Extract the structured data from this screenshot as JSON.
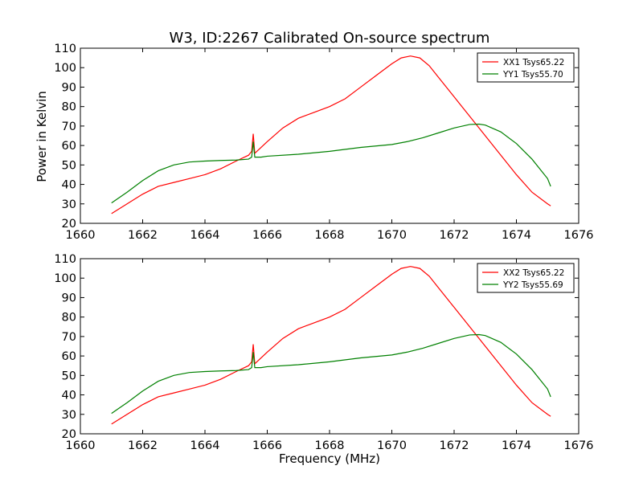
{
  "figure": {
    "title": "W3, ID:2267 Calibrated On-source spectrum",
    "ylabel": "Power in Kelvin",
    "xlabel": "Frequency (MHz)"
  },
  "chart_data": [
    {
      "type": "line",
      "xlim": [
        1660,
        1676
      ],
      "ylim": [
        20,
        110
      ],
      "xticks": [
        1660,
        1662,
        1664,
        1666,
        1668,
        1670,
        1672,
        1674,
        1676
      ],
      "yticks": [
        20,
        30,
        40,
        50,
        60,
        70,
        80,
        90,
        100,
        110
      ],
      "legend_position": "top-right",
      "series": [
        {
          "name": "XX1 Tsys65.22",
          "color": "#ff0000",
          "x": [
            1661.0,
            1661.5,
            1662.0,
            1662.5,
            1663.0,
            1663.5,
            1664.0,
            1664.5,
            1665.0,
            1665.4,
            1665.5,
            1665.55,
            1665.6,
            1665.8,
            1666.0,
            1666.5,
            1667.0,
            1667.5,
            1668.0,
            1668.5,
            1669.0,
            1669.5,
            1670.0,
            1670.3,
            1670.6,
            1670.9,
            1671.2,
            1671.5,
            1672.0,
            1672.5,
            1673.0,
            1673.5,
            1674.0,
            1674.5,
            1675.0,
            1675.1
          ],
          "y": [
            25,
            30,
            35,
            39,
            41,
            43,
            45,
            48,
            52,
            55,
            57,
            66,
            56,
            59,
            62,
            69,
            74,
            77,
            80,
            84,
            90,
            96,
            102,
            105,
            106,
            105,
            101,
            95,
            85,
            75,
            65,
            55,
            45,
            36,
            30,
            29
          ]
        },
        {
          "name": "YY1 Tsys55.70",
          "color": "#008000",
          "x": [
            1661.0,
            1661.5,
            1662.0,
            1662.5,
            1663.0,
            1663.5,
            1664.0,
            1664.5,
            1665.0,
            1665.4,
            1665.5,
            1665.55,
            1665.6,
            1665.8,
            1666.0,
            1667.0,
            1668.0,
            1669.0,
            1670.0,
            1670.5,
            1671.0,
            1671.5,
            1672.0,
            1672.5,
            1672.8,
            1673.0,
            1673.5,
            1674.0,
            1674.5,
            1675.0,
            1675.1
          ],
          "y": [
            30.5,
            36,
            42,
            47,
            50,
            51.5,
            52,
            52.3,
            52.5,
            53,
            54,
            62,
            54,
            54,
            54.5,
            55.5,
            57,
            59,
            60.5,
            62,
            64,
            66.5,
            69,
            70.8,
            71,
            70.5,
            67,
            61,
            53,
            43,
            39
          ]
        }
      ]
    },
    {
      "type": "line",
      "xlim": [
        1660,
        1676
      ],
      "ylim": [
        20,
        110
      ],
      "xticks": [
        1660,
        1662,
        1664,
        1666,
        1668,
        1670,
        1672,
        1674,
        1676
      ],
      "yticks": [
        20,
        30,
        40,
        50,
        60,
        70,
        80,
        90,
        100,
        110
      ],
      "legend_position": "top-right",
      "series": [
        {
          "name": "XX2 Tsys65.22",
          "color": "#ff0000",
          "x": [
            1661.0,
            1661.5,
            1662.0,
            1662.5,
            1663.0,
            1663.5,
            1664.0,
            1664.5,
            1665.0,
            1665.4,
            1665.5,
            1665.55,
            1665.6,
            1665.8,
            1666.0,
            1666.5,
            1667.0,
            1667.5,
            1668.0,
            1668.5,
            1669.0,
            1669.5,
            1670.0,
            1670.3,
            1670.6,
            1670.9,
            1671.2,
            1671.5,
            1672.0,
            1672.5,
            1673.0,
            1673.5,
            1674.0,
            1674.5,
            1675.0,
            1675.1
          ],
          "y": [
            25,
            30,
            35,
            39,
            41,
            43,
            45,
            48,
            52,
            55,
            57,
            66,
            56,
            59,
            62,
            69,
            74,
            77,
            80,
            84,
            90,
            96,
            102,
            105,
            106,
            105,
            101,
            95,
            85,
            75,
            65,
            55,
            45,
            36,
            30,
            29
          ]
        },
        {
          "name": "YY2 Tsys55.69",
          "color": "#008000",
          "x": [
            1661.0,
            1661.5,
            1662.0,
            1662.5,
            1663.0,
            1663.5,
            1664.0,
            1664.5,
            1665.0,
            1665.4,
            1665.5,
            1665.55,
            1665.6,
            1665.8,
            1666.0,
            1667.0,
            1668.0,
            1669.0,
            1670.0,
            1670.5,
            1671.0,
            1671.5,
            1672.0,
            1672.5,
            1672.8,
            1673.0,
            1673.5,
            1674.0,
            1674.5,
            1675.0,
            1675.1
          ],
          "y": [
            30.5,
            36,
            42,
            47,
            50,
            51.5,
            52,
            52.3,
            52.5,
            53,
            54,
            62,
            54,
            54,
            54.5,
            55.5,
            57,
            59,
            60.5,
            62,
            64,
            66.5,
            69,
            70.8,
            71,
            70.5,
            67,
            61,
            53,
            43,
            39
          ]
        }
      ]
    }
  ]
}
